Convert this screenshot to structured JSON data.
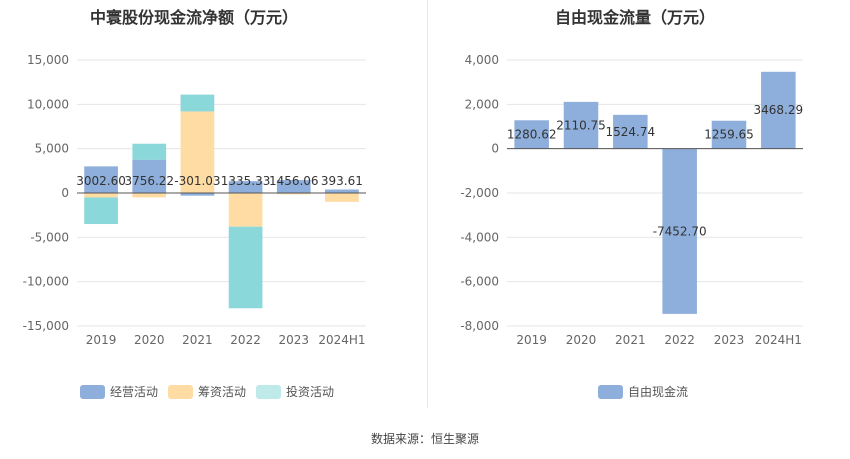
{
  "source_label": "数据来源：恒生聚源",
  "chart_data": [
    {
      "type": "bar",
      "stacked": true,
      "title": "中寰股份现金流净额（万元）",
      "categories": [
        "2019",
        "2020",
        "2021",
        "2022",
        "2023",
        "2024H1"
      ],
      "ylim": [
        -15000,
        15000
      ],
      "yticks": [
        "15,000",
        "10,000",
        "5,000",
        "0",
        "-5,000",
        "-10,000",
        "-15,000"
      ],
      "grid": true,
      "legend_position": "bottom",
      "series": [
        {
          "name": "经营活动",
          "color": "#8eaedb",
          "values": [
            3002.6,
            3756.22,
            -301.03,
            1335.33,
            1456.06,
            393.61
          ]
        },
        {
          "name": "筹资活动",
          "color": "#ffdca3",
          "values": [
            -500,
            -500,
            9200,
            -3800,
            -150,
            -1000
          ]
        },
        {
          "name": "投资活动",
          "color": "#8ad8da",
          "values": [
            -3000,
            1800,
            1900,
            -9200,
            0,
            0
          ]
        }
      ],
      "data_labels": [
        "3002.60",
        "3756.22",
        "-301.03",
        "1335.33",
        "1456.06",
        "393.61"
      ]
    },
    {
      "type": "bar",
      "title": "自由现金流量（万元）",
      "categories": [
        "2019",
        "2020",
        "2021",
        "2022",
        "2023",
        "2024H1"
      ],
      "ylim": [
        -8000,
        4000
      ],
      "yticks": [
        "4,000",
        "2,000",
        "0",
        "-2,000",
        "-4,000",
        "-6,000",
        "-8,000"
      ],
      "grid": true,
      "legend_position": "bottom",
      "series": [
        {
          "name": "自由现金流",
          "color": "#8eaedb",
          "values": [
            1280.62,
            2110.75,
            1524.74,
            -7452.7,
            1259.65,
            3468.29
          ]
        }
      ],
      "data_labels": [
        "1280.62",
        "2110.75",
        "1524.74",
        "-7452.70",
        "1259.65",
        "3468.29"
      ]
    }
  ]
}
